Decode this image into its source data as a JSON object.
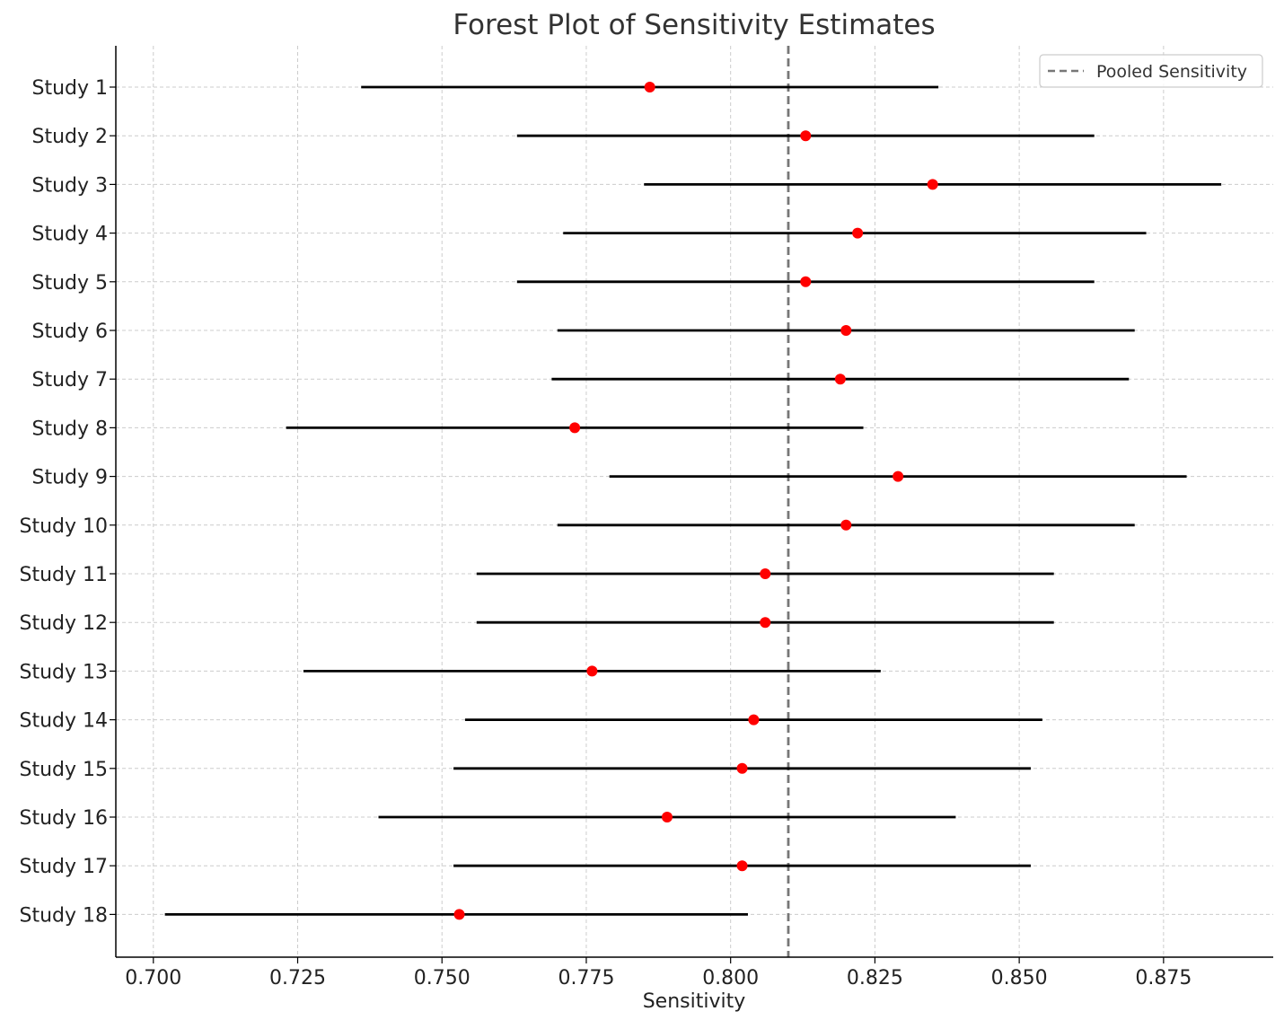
{
  "chart_data": {
    "type": "forest",
    "title": "Forest Plot of Sensitivity Estimates",
    "xlabel": "Sensitivity",
    "ylabel": "",
    "xlim": [
      0.6935,
      0.894
    ],
    "xticks": [
      0.7,
      0.725,
      0.75,
      0.775,
      0.8,
      0.825,
      0.85,
      0.875
    ],
    "xtick_labels": [
      "0.700",
      "0.725",
      "0.750",
      "0.775",
      "0.800",
      "0.825",
      "0.850",
      "0.875"
    ],
    "grid": true,
    "legend": {
      "placement": "top-right",
      "entries": [
        "Pooled Sensitivity"
      ]
    },
    "pooled_sensitivity": 0.81,
    "studies": [
      {
        "label": "Study 1",
        "estimate": 0.786,
        "ci_low": 0.736,
        "ci_high": 0.836
      },
      {
        "label": "Study 2",
        "estimate": 0.813,
        "ci_low": 0.763,
        "ci_high": 0.863
      },
      {
        "label": "Study 3",
        "estimate": 0.835,
        "ci_low": 0.785,
        "ci_high": 0.885
      },
      {
        "label": "Study 4",
        "estimate": 0.822,
        "ci_low": 0.771,
        "ci_high": 0.872
      },
      {
        "label": "Study 5",
        "estimate": 0.813,
        "ci_low": 0.763,
        "ci_high": 0.863
      },
      {
        "label": "Study 6",
        "estimate": 0.82,
        "ci_low": 0.77,
        "ci_high": 0.87
      },
      {
        "label": "Study 7",
        "estimate": 0.819,
        "ci_low": 0.769,
        "ci_high": 0.869
      },
      {
        "label": "Study 8",
        "estimate": 0.773,
        "ci_low": 0.723,
        "ci_high": 0.823
      },
      {
        "label": "Study 9",
        "estimate": 0.829,
        "ci_low": 0.779,
        "ci_high": 0.879
      },
      {
        "label": "Study 10",
        "estimate": 0.82,
        "ci_low": 0.77,
        "ci_high": 0.87
      },
      {
        "label": "Study 11",
        "estimate": 0.806,
        "ci_low": 0.756,
        "ci_high": 0.856
      },
      {
        "label": "Study 12",
        "estimate": 0.806,
        "ci_low": 0.756,
        "ci_high": 0.856
      },
      {
        "label": "Study 13",
        "estimate": 0.776,
        "ci_low": 0.726,
        "ci_high": 0.826
      },
      {
        "label": "Study 14",
        "estimate": 0.804,
        "ci_low": 0.754,
        "ci_high": 0.854
      },
      {
        "label": "Study 15",
        "estimate": 0.802,
        "ci_low": 0.752,
        "ci_high": 0.852
      },
      {
        "label": "Study 16",
        "estimate": 0.789,
        "ci_low": 0.739,
        "ci_high": 0.839
      },
      {
        "label": "Study 17",
        "estimate": 0.802,
        "ci_low": 0.752,
        "ci_high": 0.852
      },
      {
        "label": "Study 18",
        "estimate": 0.753,
        "ci_low": 0.702,
        "ci_high": 0.803
      }
    ],
    "colors": {
      "point": "#ff0000",
      "ci_line": "#000000",
      "pooled_line": "#777777",
      "grid": "#cccccc",
      "axis": "#000000"
    }
  }
}
